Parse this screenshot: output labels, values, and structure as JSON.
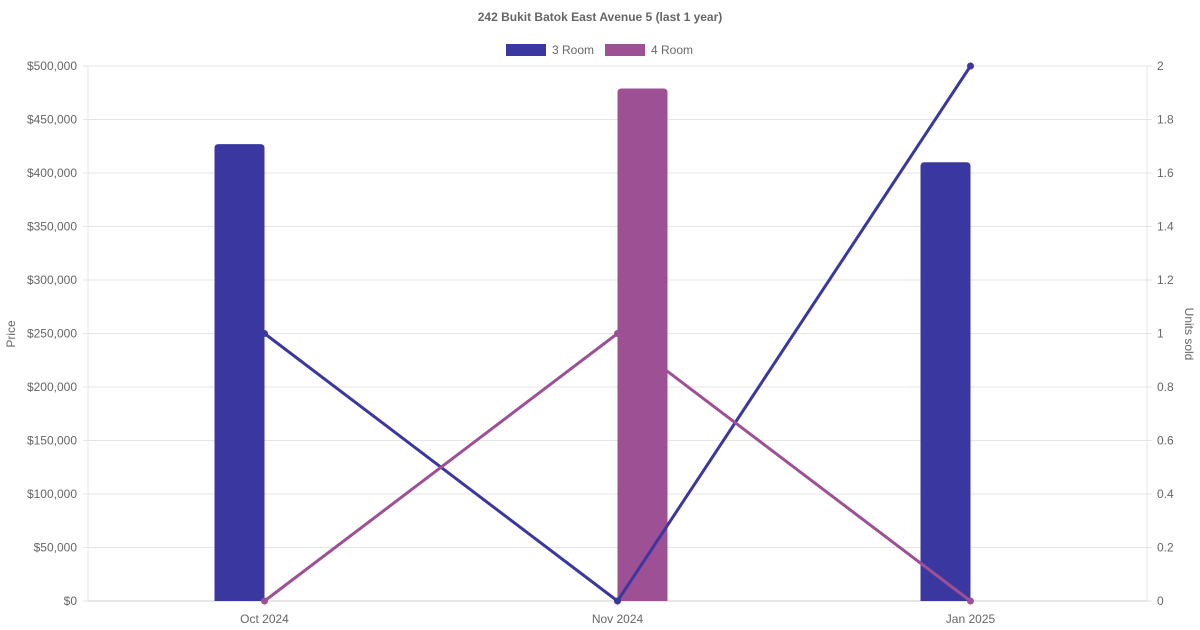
{
  "chart_data": {
    "type": "bar",
    "title": "242 Bukit Batok East Avenue 5 (last 1 year)",
    "categories": [
      "Oct 2024",
      "Nov 2024",
      "Jan 2025"
    ],
    "y_left": {
      "label": "Price",
      "range": [
        0,
        500000
      ],
      "ticks": [
        "$0",
        "$50,000",
        "$100,000",
        "$150,000",
        "$200,000",
        "$250,000",
        "$300,000",
        "$350,000",
        "$400,000",
        "$450,000",
        "$500,000"
      ],
      "tick_values": [
        0,
        50000,
        100000,
        150000,
        200000,
        250000,
        300000,
        350000,
        400000,
        450000,
        500000
      ]
    },
    "y_right": {
      "label": "Units sold",
      "range": [
        0,
        2
      ],
      "ticks": [
        "0",
        "0.2",
        "0.4",
        "0.6",
        "0.8",
        "1",
        "1.2",
        "1.4",
        "1.6",
        "1.8",
        "2"
      ],
      "tick_values": [
        0,
        0.2,
        0.4,
        0.6,
        0.8,
        1,
        1.2,
        1.4,
        1.6,
        1.8,
        2
      ]
    },
    "series": [
      {
        "name": "3 Room",
        "color": "#3b37a0",
        "price": [
          427000,
          null,
          410000
        ],
        "units": [
          1,
          0,
          2
        ]
      },
      {
        "name": "4 Room",
        "color": "#9e5094",
        "price": [
          null,
          479000,
          null
        ],
        "units": [
          0,
          1,
          0
        ]
      }
    ],
    "grid": true,
    "legend": "top"
  }
}
